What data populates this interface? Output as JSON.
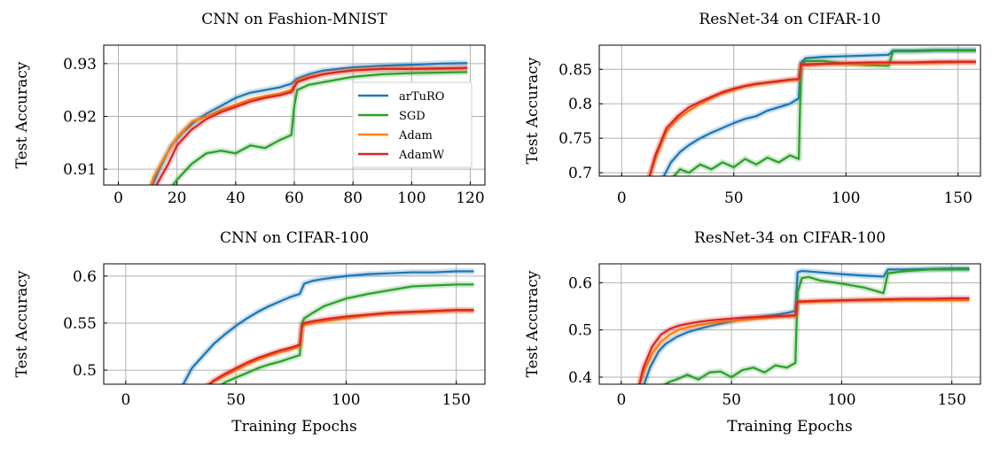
{
  "colors": {
    "arTuRO": "#1f77b4",
    "SGD": "#2ca02c",
    "Adam": "#ff7f0e",
    "AdamW": "#d62728"
  },
  "legend": {
    "entries": [
      "arTuRO",
      "SGD",
      "Adam",
      "AdamW"
    ],
    "placement": "center-right",
    "panel": 0
  },
  "chart_data": [
    {
      "type": "line",
      "title": "CNN on Fashion-MNIST",
      "xlabel": "",
      "ylabel": "Test Accuracy",
      "xlim": [
        -5,
        125
      ],
      "ylim": [
        0.907,
        0.9335
      ],
      "xticks": [
        0,
        20,
        40,
        60,
        80,
        100,
        120
      ],
      "xtick_labels": [
        "0",
        "20",
        "40",
        "60",
        "80",
        "100",
        "120"
      ],
      "yticks": [
        0.91,
        0.92,
        0.93
      ],
      "ytick_labels": [
        "0.91",
        "0.92",
        "0.93"
      ],
      "grid": true,
      "series": [
        {
          "name": "arTuRO",
          "x": [
            10,
            14,
            18,
            22,
            26,
            30,
            35,
            40,
            45,
            50,
            55,
            59,
            61,
            65,
            70,
            75,
            80,
            90,
            100,
            110,
            119
          ],
          "y": [
            0.905,
            0.91,
            0.9145,
            0.917,
            0.919,
            0.9205,
            0.922,
            0.9235,
            0.9245,
            0.925,
            0.9255,
            0.9262,
            0.9272,
            0.928,
            0.9287,
            0.929,
            0.9293,
            0.9296,
            0.9298,
            0.93,
            0.9301
          ]
        },
        {
          "name": "SGD",
          "x": [
            16,
            20,
            25,
            30,
            35,
            40,
            45,
            50,
            55,
            59,
            60,
            61,
            65,
            70,
            75,
            80,
            90,
            100,
            110,
            119
          ],
          "y": [
            0.905,
            0.908,
            0.911,
            0.913,
            0.9135,
            0.913,
            0.9145,
            0.914,
            0.9155,
            0.9165,
            0.922,
            0.925,
            0.926,
            0.9265,
            0.927,
            0.9275,
            0.928,
            0.9282,
            0.9283,
            0.9284
          ]
        },
        {
          "name": "Adam",
          "x": [
            10,
            12,
            16,
            20,
            25,
            30,
            35,
            40,
            45,
            50,
            55,
            59,
            61,
            65,
            70,
            75,
            80,
            90,
            100,
            110,
            119
          ],
          "y": [
            0.905,
            0.9085,
            0.9125,
            0.916,
            0.919,
            0.92,
            0.9212,
            0.9222,
            0.9232,
            0.9238,
            0.9243,
            0.925,
            0.9268,
            0.9275,
            0.928,
            0.9284,
            0.9288,
            0.929,
            0.929,
            0.929,
            0.9291
          ]
        },
        {
          "name": "AdamW",
          "x": [
            10,
            13,
            17,
            20,
            25,
            30,
            35,
            40,
            45,
            50,
            55,
            59,
            61,
            65,
            70,
            75,
            80,
            90,
            100,
            110,
            119
          ],
          "y": [
            0.905,
            0.907,
            0.911,
            0.9145,
            0.9175,
            0.9195,
            0.9208,
            0.9218,
            0.9228,
            0.9235,
            0.924,
            0.9246,
            0.9265,
            0.9273,
            0.928,
            0.9284,
            0.9287,
            0.929,
            0.929,
            0.9291,
            0.9292
          ]
        }
      ]
    },
    {
      "type": "line",
      "title": "ResNet-34 on CIFAR-10",
      "xlabel": "",
      "ylabel": "Test Accuracy",
      "xlim": [
        -10,
        160
      ],
      "ylim": [
        0.695,
        0.885
      ],
      "xticks": [
        0,
        50,
        100,
        150
      ],
      "xtick_labels": [
        "0",
        "50",
        "100",
        "150"
      ],
      "yticks": [
        0.7,
        0.75,
        0.8,
        0.85
      ],
      "ytick_labels": [
        "0.7",
        "0.75",
        "0.8",
        "0.85"
      ],
      "grid": true,
      "series": [
        {
          "name": "arTuRO",
          "x": [
            18,
            22,
            26,
            30,
            35,
            40,
            45,
            50,
            55,
            60,
            65,
            70,
            75,
            79,
            80,
            82,
            90,
            100,
            110,
            119,
            121,
            130,
            140,
            150,
            158
          ],
          "y": [
            0.69,
            0.715,
            0.73,
            0.74,
            0.75,
            0.758,
            0.765,
            0.772,
            0.778,
            0.782,
            0.79,
            0.795,
            0.8,
            0.808,
            0.86,
            0.866,
            0.868,
            0.869,
            0.87,
            0.871,
            0.877,
            0.877,
            0.878,
            0.878,
            0.878
          ]
        },
        {
          "name": "SGD",
          "x": [
            22,
            26,
            30,
            35,
            40,
            45,
            50,
            55,
            60,
            65,
            70,
            75,
            79,
            80,
            82,
            90,
            100,
            110,
            119,
            121,
            130,
            140,
            150,
            158
          ],
          "y": [
            0.69,
            0.705,
            0.7,
            0.712,
            0.705,
            0.715,
            0.708,
            0.72,
            0.712,
            0.722,
            0.715,
            0.725,
            0.72,
            0.855,
            0.862,
            0.862,
            0.858,
            0.856,
            0.855,
            0.876,
            0.876,
            0.877,
            0.877,
            0.877
          ]
        },
        {
          "name": "Adam",
          "x": [
            12,
            15,
            20,
            25,
            30,
            35,
            40,
            45,
            50,
            55,
            60,
            65,
            70,
            75,
            79,
            80,
            90,
            100,
            110,
            120,
            130,
            140,
            150,
            158
          ],
          "y": [
            0.69,
            0.72,
            0.76,
            0.778,
            0.79,
            0.8,
            0.808,
            0.815,
            0.82,
            0.825,
            0.828,
            0.83,
            0.832,
            0.834,
            0.835,
            0.855,
            0.857,
            0.858,
            0.858,
            0.859,
            0.859,
            0.859,
            0.86,
            0.86
          ]
        },
        {
          "name": "AdamW",
          "x": [
            12,
            15,
            20,
            25,
            30,
            35,
            40,
            45,
            50,
            55,
            60,
            65,
            70,
            75,
            79,
            80,
            90,
            100,
            110,
            120,
            130,
            140,
            150,
            158
          ],
          "y": [
            0.69,
            0.725,
            0.765,
            0.782,
            0.795,
            0.803,
            0.81,
            0.817,
            0.822,
            0.826,
            0.829,
            0.831,
            0.833,
            0.835,
            0.836,
            0.857,
            0.858,
            0.859,
            0.86,
            0.86,
            0.86,
            0.861,
            0.861,
            0.861
          ]
        }
      ]
    },
    {
      "type": "line",
      "title": "CNN on CIFAR-100",
      "xlabel": "Training Epochs",
      "ylabel": "Test Accuracy",
      "xlim": [
        -10,
        163
      ],
      "ylim": [
        0.485,
        0.613
      ],
      "xticks": [
        0,
        50,
        100,
        150
      ],
      "xtick_labels": [
        "0",
        "50",
        "100",
        "150"
      ],
      "yticks": [
        0.5,
        0.55,
        0.6
      ],
      "ytick_labels": [
        "0.5",
        "0.55",
        "0.6"
      ],
      "grid": true,
      "series": [
        {
          "name": "arTuRO",
          "x": [
            25,
            30,
            35,
            40,
            45,
            50,
            55,
            60,
            65,
            70,
            75,
            79,
            81,
            85,
            90,
            100,
            110,
            120,
            130,
            140,
            150,
            158
          ],
          "y": [
            0.48,
            0.502,
            0.515,
            0.528,
            0.538,
            0.547,
            0.555,
            0.562,
            0.568,
            0.573,
            0.578,
            0.581,
            0.592,
            0.595,
            0.597,
            0.6,
            0.602,
            0.603,
            0.604,
            0.604,
            0.605,
            0.605
          ]
        },
        {
          "name": "SGD",
          "x": [
            42,
            45,
            50,
            55,
            60,
            65,
            70,
            75,
            79,
            80,
            81,
            85,
            90,
            100,
            110,
            120,
            130,
            140,
            150,
            158
          ],
          "y": [
            0.482,
            0.487,
            0.492,
            0.497,
            0.502,
            0.506,
            0.509,
            0.513,
            0.516,
            0.55,
            0.555,
            0.561,
            0.568,
            0.576,
            0.581,
            0.585,
            0.589,
            0.59,
            0.591,
            0.591
          ]
        },
        {
          "name": "Adam",
          "x": [
            35,
            40,
            45,
            50,
            55,
            60,
            65,
            70,
            75,
            79,
            80,
            81,
            85,
            90,
            100,
            110,
            120,
            130,
            140,
            150,
            158
          ],
          "y": [
            0.48,
            0.488,
            0.494,
            0.5,
            0.506,
            0.511,
            0.515,
            0.519,
            0.522,
            0.525,
            0.545,
            0.548,
            0.55,
            0.552,
            0.555,
            0.558,
            0.56,
            0.561,
            0.562,
            0.563,
            0.563
          ]
        },
        {
          "name": "AdamW",
          "x": [
            35,
            40,
            45,
            50,
            55,
            60,
            65,
            70,
            75,
            79,
            80,
            81,
            85,
            90,
            100,
            110,
            120,
            130,
            140,
            150,
            158
          ],
          "y": [
            0.48,
            0.489,
            0.496,
            0.502,
            0.508,
            0.513,
            0.517,
            0.521,
            0.524,
            0.527,
            0.548,
            0.55,
            0.552,
            0.554,
            0.557,
            0.559,
            0.561,
            0.562,
            0.563,
            0.564,
            0.564
          ]
        }
      ]
    },
    {
      "type": "line",
      "title": "ResNet-34 on CIFAR-100",
      "xlabel": "Training Epochs",
      "ylabel": "Test Accuracy",
      "xlim": [
        -10,
        163
      ],
      "ylim": [
        0.385,
        0.64
      ],
      "xticks": [
        0,
        50,
        100,
        150
      ],
      "xtick_labels": [
        "0",
        "50",
        "100",
        "150"
      ],
      "yticks": [
        0.4,
        0.5,
        0.6
      ],
      "ytick_labels": [
        "0.4",
        "0.5",
        "0.6"
      ],
      "grid": true,
      "series": [
        {
          "name": "arTuRO",
          "x": [
            10,
            13,
            17,
            20,
            25,
            30,
            35,
            40,
            45,
            50,
            55,
            60,
            65,
            70,
            75,
            79,
            80,
            82,
            90,
            100,
            110,
            119,
            121,
            130,
            140,
            150,
            158
          ],
          "y": [
            0.38,
            0.42,
            0.455,
            0.47,
            0.485,
            0.495,
            0.502,
            0.508,
            0.513,
            0.518,
            0.522,
            0.526,
            0.529,
            0.532,
            0.536,
            0.54,
            0.622,
            0.625,
            0.622,
            0.618,
            0.615,
            0.613,
            0.628,
            0.628,
            0.629,
            0.63,
            0.63
          ]
        },
        {
          "name": "SGD",
          "x": [
            18,
            22,
            25,
            30,
            35,
            40,
            45,
            50,
            55,
            60,
            65,
            70,
            75,
            79,
            80,
            82,
            85,
            90,
            100,
            110,
            119,
            121,
            130,
            140,
            150,
            158
          ],
          "y": [
            0.38,
            0.39,
            0.395,
            0.405,
            0.395,
            0.41,
            0.412,
            0.4,
            0.415,
            0.42,
            0.41,
            0.425,
            0.42,
            0.43,
            0.58,
            0.61,
            0.612,
            0.605,
            0.598,
            0.59,
            0.578,
            0.62,
            0.625,
            0.628,
            0.628,
            0.628
          ]
        },
        {
          "name": "Adam",
          "x": [
            8,
            10,
            14,
            18,
            22,
            26,
            30,
            35,
            40,
            45,
            50,
            55,
            60,
            65,
            70,
            75,
            79,
            80,
            90,
            100,
            110,
            120,
            130,
            140,
            150,
            158
          ],
          "y": [
            0.38,
            0.41,
            0.45,
            0.475,
            0.49,
            0.5,
            0.505,
            0.51,
            0.514,
            0.517,
            0.519,
            0.521,
            0.523,
            0.525,
            0.527,
            0.528,
            0.529,
            0.558,
            0.56,
            0.561,
            0.562,
            0.562,
            0.563,
            0.563,
            0.563,
            0.563
          ]
        },
        {
          "name": "AdamW",
          "x": [
            8,
            10,
            14,
            18,
            22,
            26,
            30,
            35,
            40,
            45,
            50,
            55,
            60,
            65,
            70,
            75,
            79,
            80,
            90,
            100,
            110,
            120,
            130,
            140,
            150,
            158
          ],
          "y": [
            0.38,
            0.42,
            0.465,
            0.49,
            0.502,
            0.509,
            0.513,
            0.517,
            0.52,
            0.522,
            0.524,
            0.526,
            0.527,
            0.528,
            0.529,
            0.53,
            0.531,
            0.56,
            0.562,
            0.563,
            0.564,
            0.565,
            0.566,
            0.566,
            0.567,
            0.567
          ]
        }
      ]
    }
  ]
}
